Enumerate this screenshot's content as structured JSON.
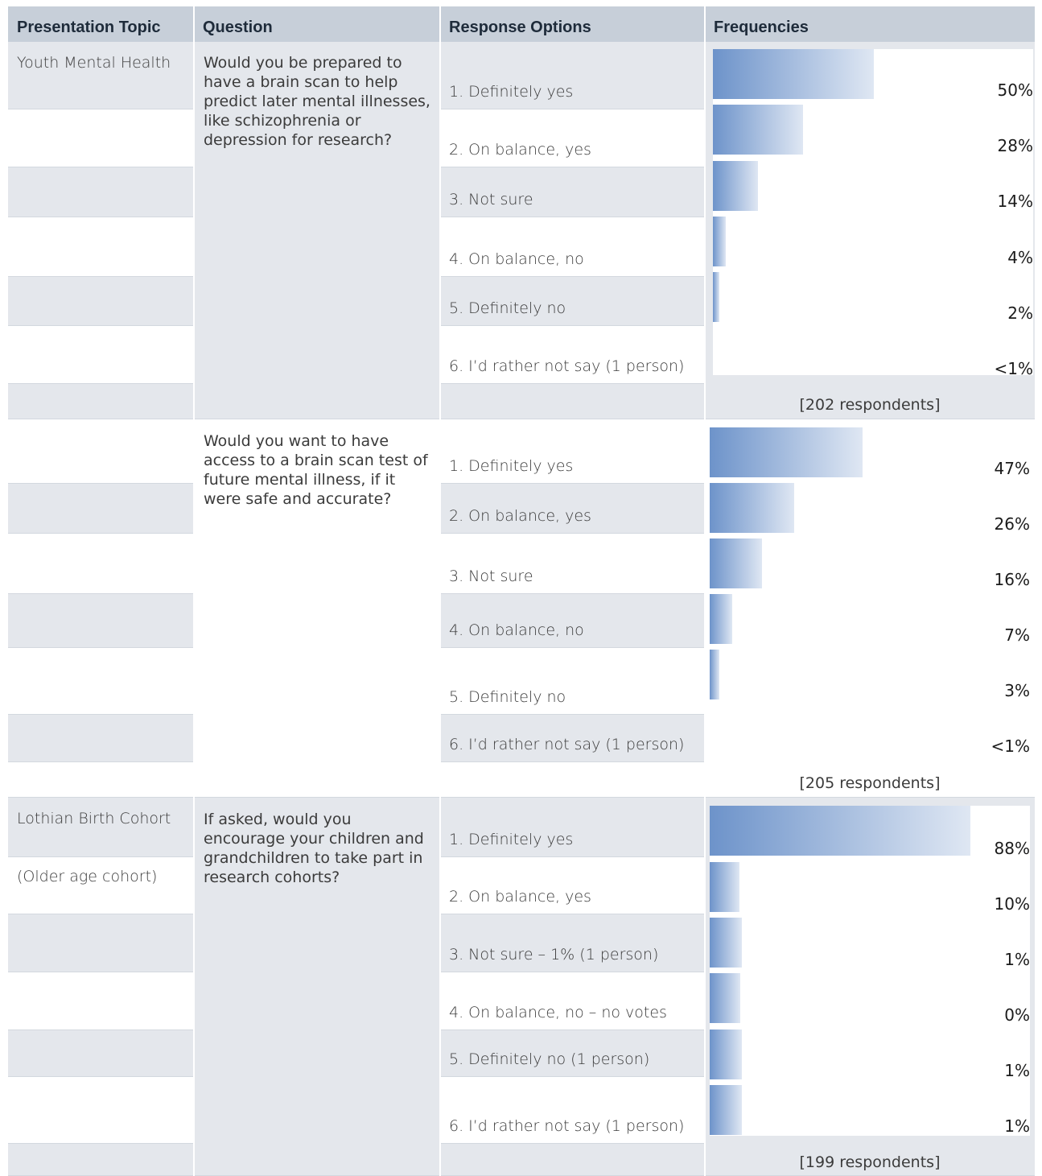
{
  "headers": {
    "topic": "Presentation Topic",
    "question": "Question",
    "options": "Response Options",
    "frequencies": "Frequencies"
  },
  "sections": [
    {
      "topic": "Youth Mental Health",
      "topic_sub": "",
      "question": "Would you be prepared to have a brain scan to help predict later mental illnesses, like schizophrenia or depression for research?",
      "options": [
        "1. Definitely yes",
        "2. On balance, yes",
        "3. Not sure",
        "4. On balance, no",
        "5. Definitely no",
        "6. I’d rather not say (1 person)"
      ],
      "percents": [
        50,
        28,
        14,
        4,
        2,
        0.5
      ],
      "labels": [
        "50%",
        "28%",
        "14%",
        "4%",
        "2%",
        "<1%"
      ],
      "respondents": "[202 respondents]"
    },
    {
      "topic": "",
      "topic_sub": "",
      "question": "Would you want to have access to a brain scan test of future mental illness, if it were safe and accurate?",
      "options": [
        "1. Definitely yes",
        "2. On balance, yes",
        "3. Not sure",
        "4. On balance, no",
        "5. Definitely no",
        "6. I’d rather not say (1 person)"
      ],
      "percents": [
        47,
        26,
        16,
        7,
        3,
        0.5
      ],
      "labels": [
        "47%",
        "26%",
        "16%",
        "7%",
        "3%",
        "<1%"
      ],
      "respondents": "[205 respondents]"
    },
    {
      "topic": "Lothian Birth Cohort",
      "topic_sub": "(Older age cohort)",
      "question": "If asked, would you encourage your children and grandchildren to take part in research cohorts?",
      "options": [
        "1. Definitely yes",
        "2. On balance, yes",
        "3. Not sure – 1% (1 person)",
        "4. On balance, no – no votes",
        "5. Definitely no (1 person)",
        "6. I’d rather not say (1 person)"
      ],
      "percents": [
        88,
        10,
        1,
        0,
        1,
        1
      ],
      "labels": [
        "88%",
        "10%",
        "1%",
        "0%",
        "1%",
        "1%"
      ],
      "respondents": "[199 respondents]"
    }
  ],
  "colors": {
    "header_bg": "#c7cfd9",
    "row_shade": "#e4e7ec",
    "bar_start": "#6d93ca",
    "bar_end": "#dfe7f3"
  }
}
